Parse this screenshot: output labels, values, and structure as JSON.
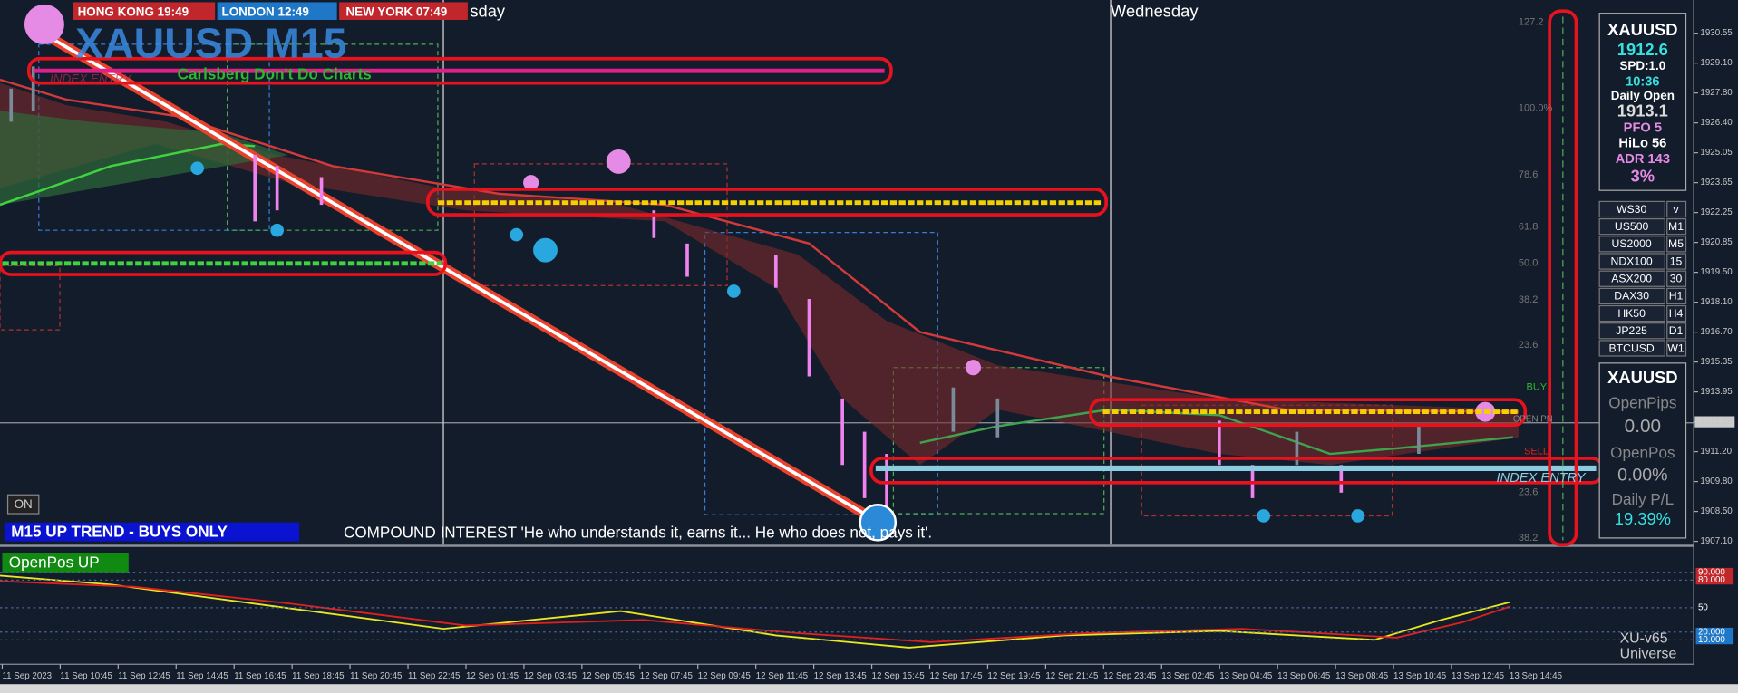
{
  "clocks": [
    {
      "city": "HONG KONG",
      "time": "19:49"
    },
    {
      "city": "LONDON",
      "time": "12:49"
    },
    {
      "city": "NEW YORK",
      "time": "07:49"
    }
  ],
  "day_labels": [
    "sday",
    "Wednesday"
  ],
  "title": "XAUUSD M15",
  "subtitle": "Carlsberg Don't Do Charts",
  "index_entry_faint": "INDEX ENTRY",
  "price_axis": [
    "1930.55",
    "1929.10",
    "1927.80",
    "1926.40",
    "1925.05",
    "1923.65",
    "1922.25",
    "1920.85",
    "1919.50",
    "1918.10",
    "1916.70",
    "1915.35",
    "1913.95",
    "1912.56",
    "1911.20",
    "1909.80",
    "1908.50",
    "1907.10"
  ],
  "fib_labels": [
    "127.2",
    "100.0%",
    "78.6",
    "61.8",
    "50.0",
    "38.2",
    "23.6",
    "23.6",
    "38.2"
  ],
  "zone_labels": {
    "buy": "BUY",
    "open": "OPEN PN",
    "sell": "SELL",
    "entry": "INDEX ENTRY"
  },
  "info_panel": {
    "symbol": "XAUUSD",
    "price": "1912.6",
    "spread": "SPD:1.0",
    "timer": "10:36",
    "daily_open_label": "Daily Open",
    "daily_open": "1913.1",
    "pfo": "PFO   5",
    "hilo": "HiLo  56",
    "adr": "ADR 143",
    "adr_pct": "3%"
  },
  "symbols": [
    [
      "WS30",
      "v"
    ],
    [
      "US500",
      "M1"
    ],
    [
      "US2000",
      "M5"
    ],
    [
      "NDX100",
      "15"
    ],
    [
      "ASX200",
      "30"
    ],
    [
      "DAX30",
      "H1"
    ],
    [
      "HK50",
      "H4"
    ],
    [
      "JP225",
      "D1"
    ],
    [
      "BTCUSD",
      "W1"
    ]
  ],
  "pos_panel": {
    "symbol": "XAUUSD",
    "pips_label": "OpenPips",
    "pips": "0.00",
    "pos_label": "OpenPos",
    "pos": "0.00%",
    "pl_label": "Daily P/L",
    "pl": "19.39%"
  },
  "on_button": "ON",
  "trend": "M15  UP TREND - BUYS ONLY",
  "quote": "COMPOUND INTEREST  'He who understands it, earns it... He who does not, pays it'.",
  "indicator": {
    "badge": "OpenPos UP",
    "levels": [
      "90.000",
      "80.000",
      "50",
      "20.000",
      "10.000"
    ],
    "name": "XU-v65",
    "sub": "Universe"
  },
  "time_axis": [
    "11 Sep 2023",
    "11 Sep 10:45",
    "11 Sep 12:45",
    "11 Sep 14:45",
    "11 Sep 16:45",
    "11 Sep 18:45",
    "11 Sep 20:45",
    "11 Sep 22:45",
    "12 Sep 01:45",
    "12 Sep 03:45",
    "12 Sep 05:45",
    "12 Sep 07:45",
    "12 Sep 09:45",
    "12 Sep 11:45",
    "12 Sep 13:45",
    "12 Sep 15:45",
    "12 Sep 17:45",
    "12 Sep 19:45",
    "12 Sep 21:45",
    "12 Sep 23:45",
    "13 Sep 02:45",
    "13 Sep 04:45",
    "13 Sep 06:45",
    "13 Sep 08:45",
    "13 Sep 10:45",
    "13 Sep 12:45",
    "13 Sep 14:45"
  ]
}
